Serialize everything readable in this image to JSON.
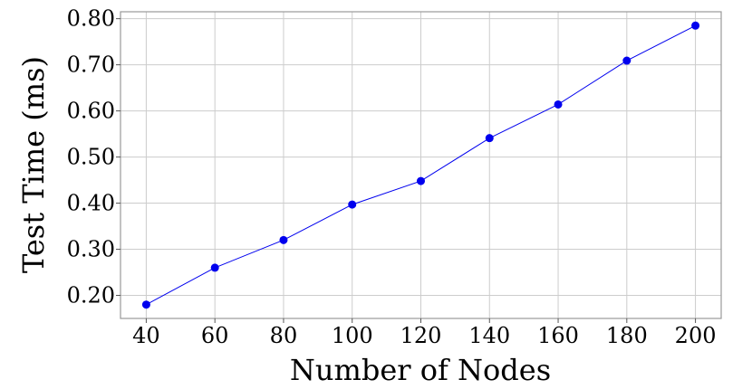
{
  "chart_data": {
    "type": "line",
    "title": "",
    "xlabel": "Number of Nodes",
    "ylabel": "Test Time (ms)",
    "x": [
      40,
      60,
      80,
      100,
      120,
      140,
      160,
      180,
      200
    ],
    "series": [
      {
        "values": [
          0.18,
          0.26,
          0.32,
          0.397,
          0.448,
          0.541,
          0.614,
          0.709,
          0.785
        ],
        "color": "#0000ee"
      }
    ],
    "x_ticks": [
      "40",
      "60",
      "80",
      "100",
      "120",
      "140",
      "160",
      "180",
      "200"
    ],
    "y_ticks": [
      "0.20",
      "0.30",
      "0.40",
      "0.50",
      "0.60",
      "0.70",
      "0.80"
    ],
    "xlim": [
      32.5,
      207.5
    ],
    "ylim": [
      0.15,
      0.815
    ],
    "grid": true,
    "legend": "none"
  }
}
